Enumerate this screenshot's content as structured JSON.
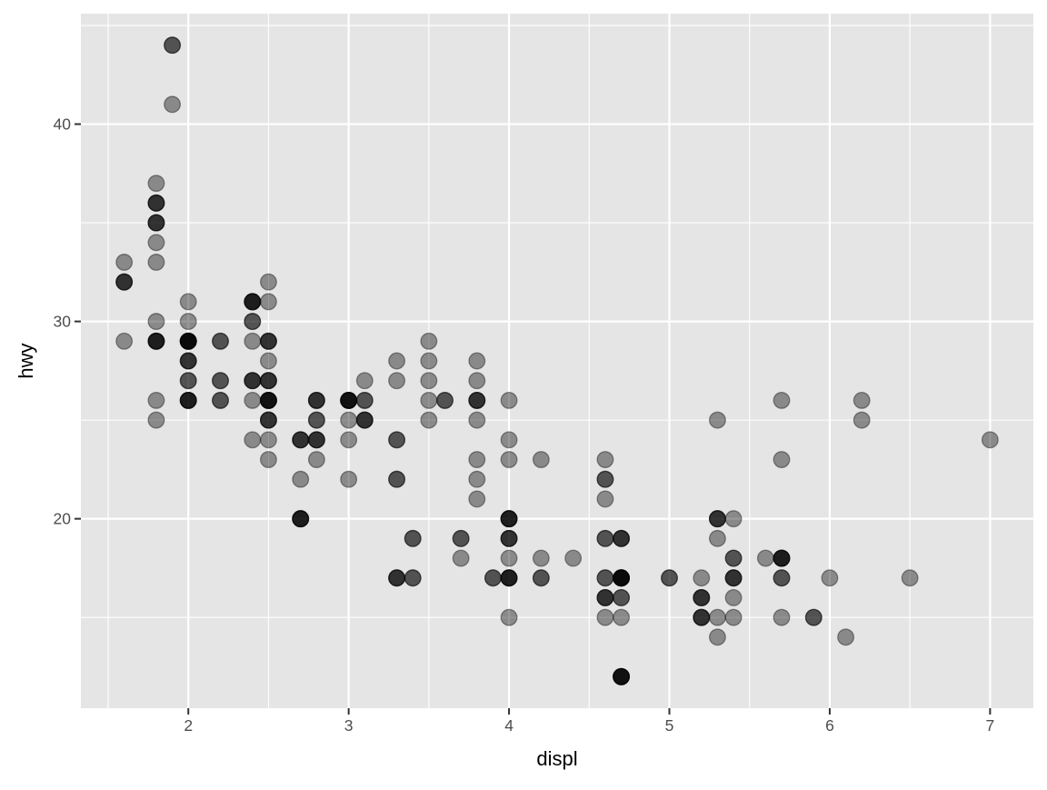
{
  "chart_data": {
    "type": "scatter",
    "xlabel": "displ",
    "ylabel": "hwy",
    "xlim": [
      1.33,
      7.27
    ],
    "ylim": [
      10.4,
      45.6
    ],
    "x_ticks": [
      2,
      3,
      4,
      5,
      6,
      7
    ],
    "y_ticks": [
      20,
      30,
      40
    ],
    "x_tick_labels": [
      "2",
      "3",
      "4",
      "5",
      "6",
      "7"
    ],
    "y_tick_labels": [
      "20",
      "30",
      "40"
    ],
    "grid": true,
    "panel_background": "#E5E5E5",
    "point_color": "#000000",
    "point_alpha": 0.4,
    "points_format": "[displ, hwy, overlapping count]",
    "points": [
      [
        1.6,
        33,
        1
      ],
      [
        1.6,
        32,
        3
      ],
      [
        1.6,
        29,
        1
      ],
      [
        1.8,
        37,
        1
      ],
      [
        1.8,
        36,
        3
      ],
      [
        1.8,
        35,
        3
      ],
      [
        1.8,
        34,
        1
      ],
      [
        1.8,
        33,
        1
      ],
      [
        1.8,
        30,
        1
      ],
      [
        1.8,
        29,
        4
      ],
      [
        1.8,
        26,
        1
      ],
      [
        1.8,
        25,
        1
      ],
      [
        1.9,
        44,
        2
      ],
      [
        1.9,
        41,
        1
      ],
      [
        2.0,
        31,
        1
      ],
      [
        2.0,
        30,
        1
      ],
      [
        2.0,
        29,
        6
      ],
      [
        2.0,
        28,
        3
      ],
      [
        2.0,
        27,
        2
      ],
      [
        2.0,
        26,
        4
      ],
      [
        2.2,
        29,
        2
      ],
      [
        2.2,
        27,
        2
      ],
      [
        2.2,
        26,
        2
      ],
      [
        2.4,
        31,
        4
      ],
      [
        2.4,
        30,
        2
      ],
      [
        2.4,
        29,
        1
      ],
      [
        2.4,
        27,
        3
      ],
      [
        2.4,
        26,
        1
      ],
      [
        2.4,
        24,
        1
      ],
      [
        2.5,
        32,
        1
      ],
      [
        2.5,
        31,
        1
      ],
      [
        2.5,
        29,
        3
      ],
      [
        2.5,
        28,
        1
      ],
      [
        2.5,
        27,
        3
      ],
      [
        2.5,
        26,
        5
      ],
      [
        2.5,
        25,
        3
      ],
      [
        2.5,
        24,
        1
      ],
      [
        2.5,
        23,
        1
      ],
      [
        2.7,
        24,
        3
      ],
      [
        2.7,
        22,
        1
      ],
      [
        2.7,
        20,
        4
      ],
      [
        2.8,
        26,
        3
      ],
      [
        2.8,
        25,
        2
      ],
      [
        2.8,
        24,
        3
      ],
      [
        2.8,
        23,
        1
      ],
      [
        3.0,
        26,
        5
      ],
      [
        3.0,
        25,
        1
      ],
      [
        3.0,
        24,
        1
      ],
      [
        3.0,
        22,
        1
      ],
      [
        3.1,
        27,
        1
      ],
      [
        3.1,
        26,
        2
      ],
      [
        3.1,
        25,
        3
      ],
      [
        3.3,
        28,
        1
      ],
      [
        3.3,
        27,
        1
      ],
      [
        3.3,
        24,
        2
      ],
      [
        3.3,
        22,
        2
      ],
      [
        3.3,
        17,
        3
      ],
      [
        3.4,
        19,
        2
      ],
      [
        3.4,
        17,
        2
      ],
      [
        3.5,
        29,
        1
      ],
      [
        3.5,
        28,
        1
      ],
      [
        3.5,
        27,
        1
      ],
      [
        3.5,
        26,
        1
      ],
      [
        3.5,
        25,
        1
      ],
      [
        3.6,
        26,
        2
      ],
      [
        3.7,
        19,
        2
      ],
      [
        3.7,
        18,
        1
      ],
      [
        3.8,
        28,
        1
      ],
      [
        3.8,
        27,
        1
      ],
      [
        3.8,
        26,
        3
      ],
      [
        3.8,
        25,
        1
      ],
      [
        3.8,
        23,
        1
      ],
      [
        3.8,
        22,
        1
      ],
      [
        3.8,
        21,
        1
      ],
      [
        3.9,
        17,
        2
      ],
      [
        4.0,
        26,
        1
      ],
      [
        4.0,
        24,
        1
      ],
      [
        4.0,
        23,
        1
      ],
      [
        4.0,
        20,
        4
      ],
      [
        4.0,
        19,
        3
      ],
      [
        4.0,
        18,
        1
      ],
      [
        4.0,
        17,
        4
      ],
      [
        4.0,
        15,
        1
      ],
      [
        4.2,
        23,
        1
      ],
      [
        4.2,
        18,
        1
      ],
      [
        4.2,
        17,
        2
      ],
      [
        4.4,
        18,
        1
      ],
      [
        4.6,
        23,
        1
      ],
      [
        4.6,
        22,
        2
      ],
      [
        4.6,
        21,
        1
      ],
      [
        4.6,
        19,
        2
      ],
      [
        4.6,
        17,
        2
      ],
      [
        4.6,
        16,
        3
      ],
      [
        4.6,
        15,
        1
      ],
      [
        4.7,
        19,
        3
      ],
      [
        4.7,
        17,
        6
      ],
      [
        4.7,
        16,
        2
      ],
      [
        4.7,
        15,
        1
      ],
      [
        4.7,
        12,
        5
      ],
      [
        5.0,
        17,
        2
      ],
      [
        5.2,
        17,
        1
      ],
      [
        5.2,
        16,
        3
      ],
      [
        5.2,
        15,
        3
      ],
      [
        5.3,
        25,
        1
      ],
      [
        5.3,
        20,
        3
      ],
      [
        5.3,
        19,
        1
      ],
      [
        5.3,
        15,
        1
      ],
      [
        5.3,
        14,
        1
      ],
      [
        5.4,
        20,
        1
      ],
      [
        5.4,
        18,
        2
      ],
      [
        5.4,
        17,
        3
      ],
      [
        5.4,
        16,
        1
      ],
      [
        5.4,
        15,
        1
      ],
      [
        5.6,
        18,
        1
      ],
      [
        5.7,
        26,
        1
      ],
      [
        5.7,
        23,
        1
      ],
      [
        5.7,
        18,
        4
      ],
      [
        5.7,
        17,
        2
      ],
      [
        5.7,
        15,
        1
      ],
      [
        5.9,
        15,
        2
      ],
      [
        6.0,
        17,
        1
      ],
      [
        6.1,
        14,
        1
      ],
      [
        6.2,
        26,
        1
      ],
      [
        6.2,
        25,
        1
      ],
      [
        6.5,
        17,
        1
      ],
      [
        7.0,
        24,
        1
      ]
    ]
  }
}
